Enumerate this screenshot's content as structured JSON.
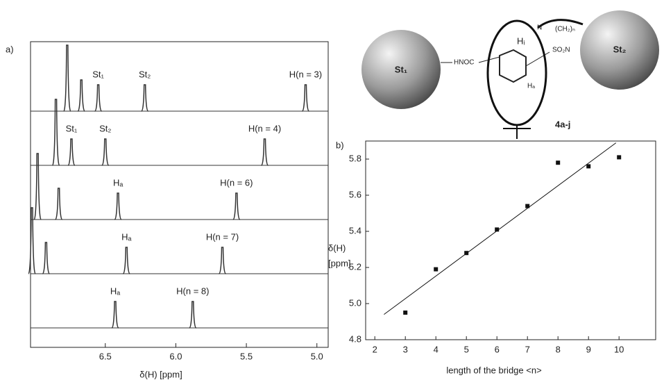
{
  "chart_data": [
    {
      "type": "spectrum",
      "panel_label": "a)",
      "xlabel": "δ(H) [ppm]",
      "xlim": [
        7.03,
        4.92
      ],
      "xticks": [
        {
          "value": 6.5,
          "label": "6.5"
        },
        {
          "value": 6.0,
          "label": "6.0"
        },
        {
          "value": 5.5,
          "label": "5.5"
        },
        {
          "value": 5.0,
          "label": "5.0"
        }
      ],
      "color": "#333333",
      "traces": [
        {
          "peaks": [
            6.77,
            6.67,
            6.55,
            6.22,
            5.08
          ],
          "labels": [
            {
              "text": "St₁",
              "x": 6.55
            },
            {
              "text": "St₂",
              "x": 6.22
            },
            {
              "text": "H(n = 3)",
              "x": 5.08
            }
          ]
        },
        {
          "peaks": [
            6.85,
            6.74,
            6.5,
            5.37
          ],
          "labels": [
            {
              "text": "St₁",
              "x": 6.74
            },
            {
              "text": "St₂",
              "x": 6.5
            },
            {
              "text": "H(n = 4)",
              "x": 5.37
            }
          ]
        },
        {
          "peaks": [
            6.98,
            6.83,
            6.41,
            5.57
          ],
          "labels": [
            {
              "text": "Hₐ",
              "x": 6.41
            },
            {
              "text": "H(n = 6)",
              "x": 5.57
            }
          ]
        },
        {
          "peaks": [
            7.02,
            6.92,
            6.35,
            5.67
          ],
          "labels": [
            {
              "text": "Hₐ",
              "x": 6.35
            },
            {
              "text": "H(n = 7)",
              "x": 5.67
            }
          ]
        },
        {
          "peaks": [
            6.43,
            5.88
          ],
          "labels": [
            {
              "text": "Hₐ",
              "x": 6.43
            },
            {
              "text": "H(n = 8)",
              "x": 5.88
            }
          ]
        }
      ]
    },
    {
      "type": "scatter",
      "panel_label": "b)",
      "xlabel": "length of the bridge <n>",
      "ylabel": [
        "δ(H)",
        "[ppm]"
      ],
      "xlim": [
        1.7,
        11.2
      ],
      "xticks": [
        2,
        3,
        4,
        5,
        6,
        7,
        8,
        9,
        10
      ],
      "ylim": [
        4.8,
        5.9
      ],
      "yticks": [
        4.8,
        {
          "value": 5.0,
          "label": "5.0"
        },
        5.2,
        5.4,
        5.6,
        5.8
      ],
      "color": "#111111",
      "x": [
        3,
        4,
        5,
        6,
        7,
        8,
        9,
        10
      ],
      "values": [
        4.95,
        5.19,
        5.28,
        5.41,
        5.54,
        5.78,
        5.76,
        5.81
      ],
      "fit": {
        "x": [
          2.3,
          9.9
        ],
        "values": [
          4.94,
          5.89
        ]
      }
    }
  ],
  "diagram": {
    "sphere_left": "St₁",
    "sphere_right": "St₂",
    "amide": "HNOC",
    "h_inner": "Hᵢ",
    "h_a": "Hₐ",
    "nitrogen": "N",
    "chain": "(CH₂)ₙ",
    "sulfonamide": "SO₂N",
    "compound": "4a-j"
  }
}
